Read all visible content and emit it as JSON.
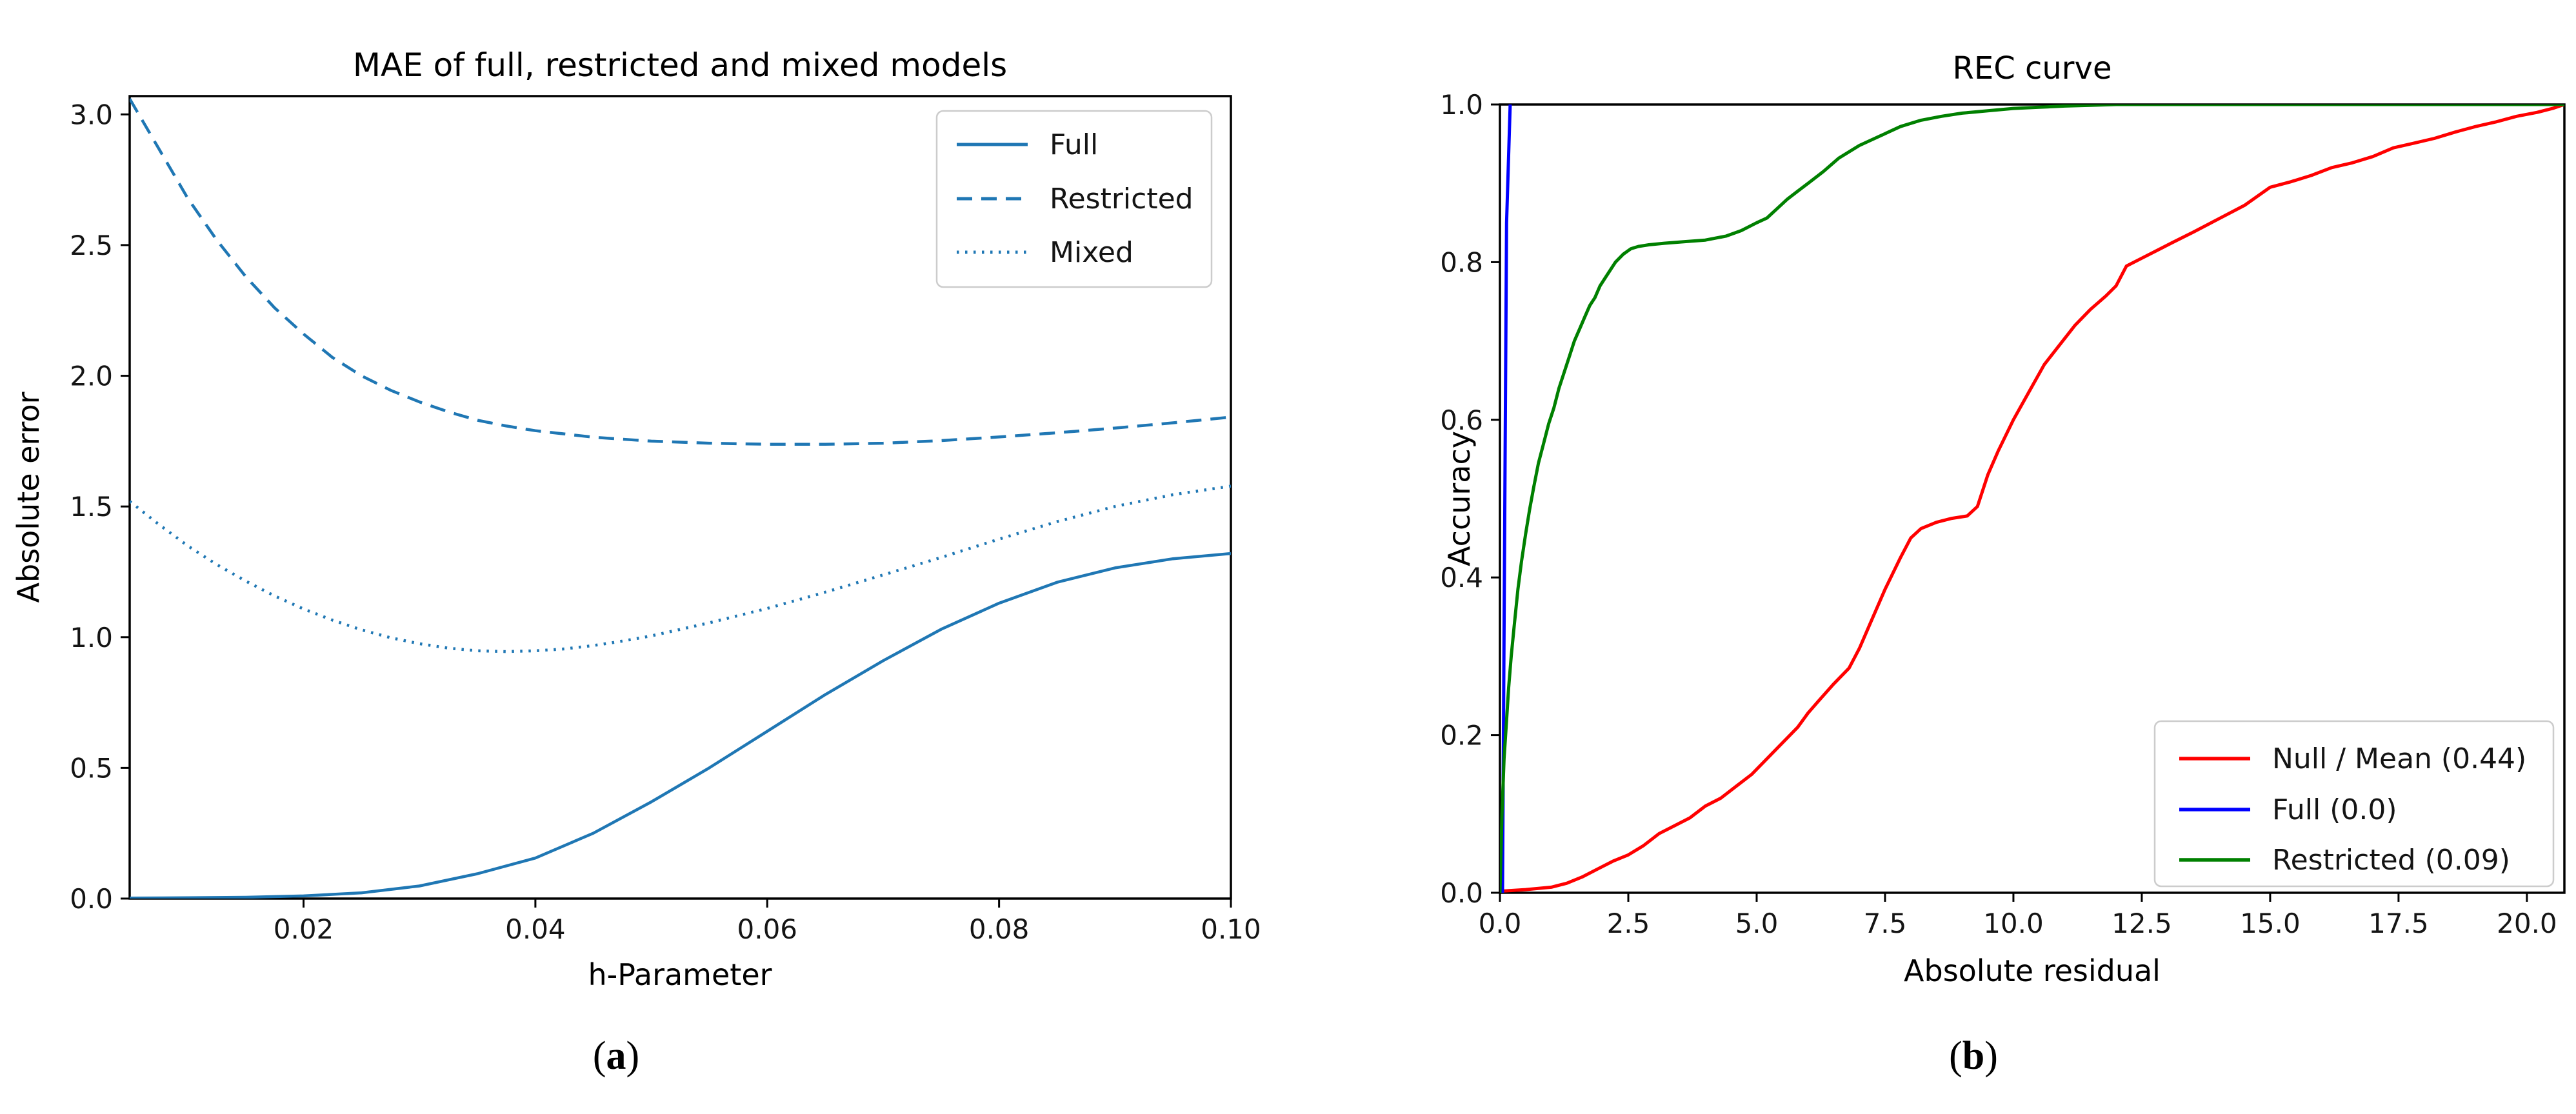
{
  "figure": {
    "background": "#ffffff",
    "captions": {
      "a": {
        "pre": "(",
        "label": "a",
        "post": ")"
      },
      "b": {
        "pre": "(",
        "label": "b",
        "post": ")"
      }
    }
  },
  "chart_data": [
    {
      "id": "mae",
      "type": "line",
      "title": "MAE of full, restricted and mixed models",
      "xlabel": "h-Parameter",
      "ylabel": "Absolute error",
      "xlim": [
        0.005,
        0.1
      ],
      "ylim": [
        0,
        3.07
      ],
      "grid": false,
      "legend_position": "upper-right",
      "xticks": {
        "values": [
          0.02,
          0.04,
          0.06,
          0.08,
          0.1
        ],
        "labels": [
          "0.02",
          "0.04",
          "0.06",
          "0.08",
          "0.10"
        ]
      },
      "yticks": {
        "values": [
          0.0,
          0.5,
          1.0,
          1.5,
          2.0,
          2.5,
          3.0
        ],
        "labels": [
          "0.0",
          "0.5",
          "1.0",
          "1.5",
          "2.0",
          "2.5",
          "3.0"
        ]
      },
      "series": [
        {
          "key": "full",
          "name": "Full",
          "style": "solid",
          "color": "#1f77b4",
          "points": [
            [
              0.005,
              0.002
            ],
            [
              0.01,
              0.003
            ],
            [
              0.015,
              0.005
            ],
            [
              0.02,
              0.01
            ],
            [
              0.025,
              0.022
            ],
            [
              0.03,
              0.048
            ],
            [
              0.035,
              0.095
            ],
            [
              0.04,
              0.155
            ],
            [
              0.045,
              0.25
            ],
            [
              0.05,
              0.37
            ],
            [
              0.055,
              0.5
            ],
            [
              0.06,
              0.64
            ],
            [
              0.065,
              0.78
            ],
            [
              0.07,
              0.91
            ],
            [
              0.075,
              1.03
            ],
            [
              0.08,
              1.13
            ],
            [
              0.085,
              1.21
            ],
            [
              0.09,
              1.265
            ],
            [
              0.095,
              1.3
            ],
            [
              0.1,
              1.32
            ]
          ]
        },
        {
          "key": "restricted",
          "name": "Restricted",
          "style": "dashed",
          "color": "#1f77b4",
          "points": [
            [
              0.005,
              3.06
            ],
            [
              0.0075,
              2.87
            ],
            [
              0.01,
              2.68
            ],
            [
              0.0125,
              2.52
            ],
            [
              0.015,
              2.38
            ],
            [
              0.0175,
              2.26
            ],
            [
              0.02,
              2.16
            ],
            [
              0.0225,
              2.07
            ],
            [
              0.025,
              2.0
            ],
            [
              0.0275,
              1.945
            ],
            [
              0.03,
              1.9
            ],
            [
              0.0325,
              1.862
            ],
            [
              0.035,
              1.83
            ],
            [
              0.0375,
              1.808
            ],
            [
              0.04,
              1.79
            ],
            [
              0.045,
              1.765
            ],
            [
              0.05,
              1.75
            ],
            [
              0.055,
              1.742
            ],
            [
              0.06,
              1.738
            ],
            [
              0.065,
              1.738
            ],
            [
              0.07,
              1.742
            ],
            [
              0.075,
              1.752
            ],
            [
              0.08,
              1.766
            ],
            [
              0.085,
              1.782
            ],
            [
              0.09,
              1.8
            ],
            [
              0.095,
              1.82
            ],
            [
              0.1,
              1.842
            ]
          ]
        },
        {
          "key": "mixed",
          "name": "Mixed",
          "style": "dotted",
          "color": "#1f77b4",
          "points": [
            [
              0.005,
              1.52
            ],
            [
              0.0075,
              1.432
            ],
            [
              0.01,
              1.35
            ],
            [
              0.0125,
              1.278
            ],
            [
              0.015,
              1.215
            ],
            [
              0.0175,
              1.158
            ],
            [
              0.02,
              1.108
            ],
            [
              0.0225,
              1.065
            ],
            [
              0.025,
              1.028
            ],
            [
              0.0275,
              0.998
            ],
            [
              0.03,
              0.975
            ],
            [
              0.0325,
              0.958
            ],
            [
              0.035,
              0.948
            ],
            [
              0.0375,
              0.945
            ],
            [
              0.04,
              0.948
            ],
            [
              0.0425,
              0.955
            ],
            [
              0.045,
              0.968
            ],
            [
              0.0475,
              0.985
            ],
            [
              0.05,
              1.005
            ],
            [
              0.055,
              1.055
            ],
            [
              0.06,
              1.11
            ],
            [
              0.065,
              1.172
            ],
            [
              0.07,
              1.238
            ],
            [
              0.075,
              1.305
            ],
            [
              0.08,
              1.375
            ],
            [
              0.085,
              1.442
            ],
            [
              0.09,
              1.5
            ],
            [
              0.095,
              1.545
            ],
            [
              0.1,
              1.578
            ]
          ]
        }
      ]
    },
    {
      "id": "rec",
      "type": "line",
      "title": "REC curve",
      "xlabel": "Absolute residual",
      "ylabel": "Accuracy",
      "xlim": [
        0,
        20.73
      ],
      "ylim": [
        0,
        1.0
      ],
      "grid": false,
      "legend_position": "lower-right",
      "xticks": {
        "values": [
          0,
          2.5,
          5,
          7.5,
          10,
          12.5,
          15,
          17.5,
          20
        ],
        "labels": [
          "0.0",
          "2.5",
          "5.0",
          "7.5",
          "10.0",
          "12.5",
          "15.0",
          "17.5",
          "20.0"
        ]
      },
      "yticks": {
        "values": [
          0,
          0.2,
          0.4,
          0.6,
          0.8,
          1.0
        ],
        "labels": [
          "0.0",
          "0.2",
          "0.4",
          "0.6",
          "0.8",
          "1.0"
        ]
      },
      "series": [
        {
          "key": "null-mean",
          "name": "Null / Mean (0.44)",
          "style": "solid",
          "color": "#ff0000",
          "points": [
            [
              0,
              0.002
            ],
            [
              0.5,
              0.004
            ],
            [
              1.0,
              0.007
            ],
            [
              1.3,
              0.012
            ],
            [
              1.6,
              0.02
            ],
            [
              1.9,
              0.03
            ],
            [
              2.2,
              0.04
            ],
            [
              2.5,
              0.048
            ],
            [
              2.8,
              0.06
            ],
            [
              3.1,
              0.075
            ],
            [
              3.4,
              0.085
            ],
            [
              3.7,
              0.095
            ],
            [
              4.0,
              0.11
            ],
            [
              4.3,
              0.12
            ],
            [
              4.6,
              0.135
            ],
            [
              4.9,
              0.15
            ],
            [
              5.2,
              0.17
            ],
            [
              5.5,
              0.19
            ],
            [
              5.8,
              0.21
            ],
            [
              6.0,
              0.228
            ],
            [
              6.2,
              0.243
            ],
            [
              6.5,
              0.265
            ],
            [
              6.8,
              0.285
            ],
            [
              7.0,
              0.31
            ],
            [
              7.2,
              0.34
            ],
            [
              7.5,
              0.385
            ],
            [
              7.8,
              0.425
            ],
            [
              8.0,
              0.45
            ],
            [
              8.2,
              0.462
            ],
            [
              8.5,
              0.47
            ],
            [
              8.8,
              0.475
            ],
            [
              9.1,
              0.478
            ],
            [
              9.3,
              0.49
            ],
            [
              9.5,
              0.53
            ],
            [
              9.7,
              0.56
            ],
            [
              10.0,
              0.6
            ],
            [
              10.3,
              0.635
            ],
            [
              10.6,
              0.67
            ],
            [
              10.9,
              0.695
            ],
            [
              11.2,
              0.72
            ],
            [
              11.5,
              0.74
            ],
            [
              11.8,
              0.757
            ],
            [
              12.0,
              0.77
            ],
            [
              12.2,
              0.795
            ],
            [
              12.5,
              0.805
            ],
            [
              12.8,
              0.815
            ],
            [
              13.1,
              0.825
            ],
            [
              13.5,
              0.838
            ],
            [
              14.0,
              0.855
            ],
            [
              14.5,
              0.872
            ],
            [
              15.0,
              0.895
            ],
            [
              15.4,
              0.902
            ],
            [
              15.8,
              0.91
            ],
            [
              16.2,
              0.92
            ],
            [
              16.6,
              0.926
            ],
            [
              17.0,
              0.934
            ],
            [
              17.4,
              0.945
            ],
            [
              17.8,
              0.951
            ],
            [
              18.2,
              0.957
            ],
            [
              18.6,
              0.965
            ],
            [
              19.0,
              0.972
            ],
            [
              19.4,
              0.978
            ],
            [
              19.8,
              0.985
            ],
            [
              20.2,
              0.99
            ],
            [
              20.5,
              0.995
            ],
            [
              20.73,
              1.0
            ]
          ]
        },
        {
          "key": "full",
          "name": "Full (0.0)",
          "style": "solid",
          "color": "#0000ff",
          "points": [
            [
              0.05,
              0
            ],
            [
              0.1,
              0.55
            ],
            [
              0.13,
              0.85
            ],
            [
              0.2,
              1.0
            ]
          ]
        },
        {
          "key": "restricted",
          "name": "Restricted (0.09)",
          "style": "solid",
          "color": "#008000",
          "points": [
            [
              0,
              0
            ],
            [
              0.04,
              0.1
            ],
            [
              0.08,
              0.17
            ],
            [
              0.12,
              0.21
            ],
            [
              0.17,
              0.26
            ],
            [
              0.22,
              0.3
            ],
            [
              0.28,
              0.34
            ],
            [
              0.35,
              0.385
            ],
            [
              0.42,
              0.42
            ],
            [
              0.5,
              0.455
            ],
            [
              0.58,
              0.487
            ],
            [
              0.66,
              0.515
            ],
            [
              0.75,
              0.545
            ],
            [
              0.85,
              0.57
            ],
            [
              0.95,
              0.595
            ],
            [
              1.05,
              0.615
            ],
            [
              1.15,
              0.64
            ],
            [
              1.25,
              0.66
            ],
            [
              1.35,
              0.68
            ],
            [
              1.45,
              0.7
            ],
            [
              1.55,
              0.715
            ],
            [
              1.65,
              0.73
            ],
            [
              1.75,
              0.745
            ],
            [
              1.85,
              0.755
            ],
            [
              1.95,
              0.77
            ],
            [
              2.05,
              0.78
            ],
            [
              2.15,
              0.79
            ],
            [
              2.25,
              0.8
            ],
            [
              2.4,
              0.81
            ],
            [
              2.55,
              0.817
            ],
            [
              2.7,
              0.82
            ],
            [
              2.9,
              0.822
            ],
            [
              3.2,
              0.824
            ],
            [
              3.6,
              0.826
            ],
            [
              4.0,
              0.828
            ],
            [
              4.4,
              0.833
            ],
            [
              4.7,
              0.84
            ],
            [
              5.0,
              0.85
            ],
            [
              5.2,
              0.856
            ],
            [
              5.4,
              0.868
            ],
            [
              5.6,
              0.88
            ],
            [
              5.8,
              0.89
            ],
            [
              6.0,
              0.9
            ],
            [
              6.3,
              0.915
            ],
            [
              6.6,
              0.932
            ],
            [
              7.0,
              0.948
            ],
            [
              7.4,
              0.96
            ],
            [
              7.8,
              0.972
            ],
            [
              8.2,
              0.98
            ],
            [
              8.6,
              0.985
            ],
            [
              9.0,
              0.989
            ],
            [
              9.5,
              0.992
            ],
            [
              10.0,
              0.995
            ],
            [
              10.5,
              0.9965
            ],
            [
              11.0,
              0.998
            ],
            [
              11.5,
              0.999
            ],
            [
              12.0,
              1.0
            ],
            [
              20.73,
              1.0
            ]
          ]
        }
      ]
    }
  ]
}
